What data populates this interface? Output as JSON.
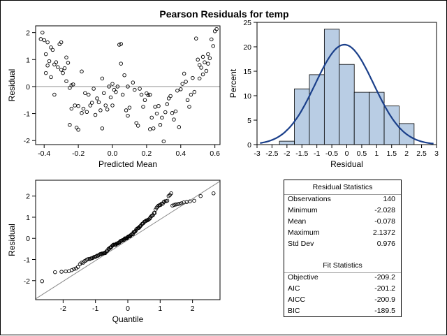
{
  "title": "Pearson Residuals for temp",
  "chart_data": [
    {
      "type": "scatter",
      "xlabel": "Predicted Mean",
      "ylabel": "Residual",
      "xlim": [
        -0.45,
        0.63
      ],
      "ylim": [
        -2.15,
        2.25
      ],
      "xticks": [
        "-0.4",
        "-0.2",
        "0.0",
        "0.2",
        "0.4",
        "0.6"
      ],
      "yticks": [
        "-2",
        "-1",
        "0",
        "1",
        "2"
      ],
      "reference_line_y": 0,
      "points": [
        [
          -0.41,
          2.0
        ],
        [
          -0.42,
          1.76
        ],
        [
          -0.4,
          1.72
        ],
        [
          -0.38,
          1.64
        ],
        [
          -0.39,
          1.2
        ],
        [
          -0.36,
          1.45
        ],
        [
          -0.35,
          1.36
        ],
        [
          -0.37,
          0.94
        ],
        [
          -0.34,
          0.82
        ],
        [
          -0.38,
          0.78
        ],
        [
          -0.39,
          0.5
        ],
        [
          -0.36,
          0.35
        ],
        [
          -0.34,
          -0.3
        ],
        [
          -0.32,
          0.72
        ],
        [
          -0.3,
          0.62
        ],
        [
          -0.31,
          1.57
        ],
        [
          -0.3,
          1.64
        ],
        [
          -0.28,
          0.68
        ],
        [
          -0.27,
          1.08
        ],
        [
          -0.27,
          0.2
        ],
        [
          -0.26,
          0.88
        ],
        [
          -0.25,
          -0.05
        ],
        [
          -0.24,
          0.05
        ],
        [
          -0.23,
          0.08
        ],
        [
          -0.24,
          -0.82
        ],
        [
          -0.22,
          -0.7
        ],
        [
          -0.25,
          -1.42
        ],
        [
          -0.21,
          -1.52
        ],
        [
          -0.2,
          -1.6
        ],
        [
          -0.2,
          -0.72
        ],
        [
          -0.18,
          -0.98
        ],
        [
          -0.17,
          -0.82
        ],
        [
          -0.16,
          -0.24
        ],
        [
          -0.18,
          0.56
        ],
        [
          -0.15,
          -0.94
        ],
        [
          -0.14,
          -0.3
        ],
        [
          -0.13,
          -0.7
        ],
        [
          -0.12,
          -0.6
        ],
        [
          -0.11,
          -0.08
        ],
        [
          -0.1,
          -1.05
        ],
        [
          -0.09,
          -0.44
        ],
        [
          -0.08,
          -0.58
        ],
        [
          -0.07,
          -0.88
        ],
        [
          -0.06,
          0.3
        ],
        [
          -0.05,
          -0.24
        ],
        [
          -0.06,
          -1.55
        ],
        [
          -0.04,
          -0.7
        ],
        [
          -0.03,
          -0.85
        ],
        [
          -0.02,
          0.0
        ],
        [
          -0.01,
          -0.4
        ],
        [
          0.0,
          -0.7
        ],
        [
          0.01,
          -0.12
        ],
        [
          0.02,
          -0.2
        ],
        [
          0.03,
          0.0
        ],
        [
          0.04,
          1.55
        ],
        [
          0.05,
          1.58
        ],
        [
          0.05,
          0.85
        ],
        [
          0.06,
          -0.3
        ],
        [
          0.07,
          0.42
        ],
        [
          0.08,
          -0.88
        ],
        [
          0.09,
          -1.08
        ],
        [
          0.1,
          -0.78
        ],
        [
          0.12,
          0.15
        ],
        [
          0.13,
          -0.12
        ],
        [
          0.14,
          -1.35
        ],
        [
          0.15,
          -1.45
        ],
        [
          0.16,
          -0.08
        ],
        [
          0.17,
          -0.3
        ],
        [
          0.18,
          -0.75
        ],
        [
          0.19,
          -0.5
        ],
        [
          0.2,
          -0.25
        ],
        [
          0.21,
          -0.32
        ],
        [
          0.22,
          -0.3
        ],
        [
          0.23,
          -1.15
        ],
        [
          0.22,
          -1.58
        ],
        [
          0.24,
          -1.55
        ],
        [
          0.25,
          -0.75
        ],
        [
          0.26,
          -1.0
        ],
        [
          0.27,
          -0.72
        ],
        [
          0.28,
          -1.42
        ],
        [
          0.29,
          -1.15
        ],
        [
          0.3,
          -2.03
        ],
        [
          0.31,
          -0.95
        ],
        [
          0.32,
          -0.65
        ],
        [
          0.33,
          -0.44
        ],
        [
          0.34,
          -0.35
        ],
        [
          0.35,
          -0.98
        ],
        [
          0.36,
          -1.22
        ],
        [
          0.37,
          -0.92
        ],
        [
          0.38,
          -0.15
        ],
        [
          0.39,
          -1.5
        ],
        [
          0.4,
          -0.1
        ],
        [
          0.41,
          0.1
        ],
        [
          0.42,
          0.48
        ],
        [
          0.43,
          0.18
        ],
        [
          0.44,
          -0.5
        ],
        [
          0.45,
          -0.75
        ],
        [
          0.46,
          -0.3
        ],
        [
          0.47,
          0.32
        ],
        [
          0.48,
          -0.2
        ],
        [
          0.49,
          1.78
        ],
        [
          0.5,
          1.0
        ],
        [
          0.51,
          0.8
        ],
        [
          0.52,
          0.7
        ],
        [
          0.53,
          0.45
        ],
        [
          0.54,
          0.9
        ],
        [
          0.55,
          0.58
        ],
        [
          0.56,
          1.2
        ],
        [
          0.57,
          1.05
        ],
        [
          0.58,
          1.75
        ],
        [
          0.59,
          1.5
        ],
        [
          0.6,
          2.05
        ],
        [
          0.61,
          2.13
        ],
        [
          0.51,
          0.3
        ],
        [
          0.53,
          1.1
        ],
        [
          0.56,
          0.85
        ],
        [
          -0.33,
          0.9
        ],
        [
          -0.29,
          0.5
        ],
        [
          0.0,
          0.1
        ],
        [
          0.09,
          0.0
        ]
      ]
    },
    {
      "type": "bar",
      "subtype": "histogram with normal curve",
      "xlabel": "Residual",
      "ylabel": "Percent",
      "xlim": [
        -3.0,
        3.0
      ],
      "ylim": [
        0,
        25
      ],
      "xticks": [
        "-3",
        "-2.5",
        "-2",
        "-1.5",
        "-1",
        "-0.5",
        "0",
        "0.5",
        "1",
        "1.5",
        "2",
        "2.5",
        "3"
      ],
      "yticks": [
        "0",
        "5",
        "10",
        "15",
        "20",
        "25"
      ],
      "bin_edges": [
        -2.25,
        -1.75,
        -1.25,
        -0.75,
        -0.25,
        0.25,
        0.75,
        1.25,
        1.75,
        2.25
      ],
      "values": [
        0.7,
        11.4,
        14.3,
        23.6,
        16.4,
        10.7,
        10.7,
        7.9,
        4.3
      ],
      "bar_color": "#b9cde4",
      "curve": {
        "mean": -0.078,
        "std": 0.976,
        "color": "#1a3f8a"
      }
    },
    {
      "type": "scatter",
      "subtype": "normal Q-Q plot",
      "xlabel": "Quantile",
      "ylabel": "Residual",
      "xlim": [
        -2.85,
        2.85
      ],
      "ylim": [
        -2.9,
        2.75
      ],
      "xticks": [
        "-2",
        "-1",
        "0",
        "1",
        "2"
      ],
      "yticks": [
        "-2",
        "-1",
        "0",
        "1",
        "2"
      ],
      "reference_line": {
        "intercept": -0.078,
        "slope": 0.976
      },
      "points": [
        [
          -2.65,
          -2.03
        ],
        [
          -2.25,
          -1.6
        ],
        [
          -2.05,
          -1.58
        ],
        [
          -1.92,
          -1.56
        ],
        [
          -1.82,
          -1.55
        ],
        [
          -1.73,
          -1.5
        ],
        [
          -1.66,
          -1.45
        ],
        [
          -1.6,
          -1.42
        ],
        [
          -1.54,
          -1.35
        ],
        [
          -1.48,
          -1.22
        ],
        [
          -1.43,
          -1.15
        ],
        [
          -1.38,
          -1.15
        ],
        [
          -1.34,
          -1.08
        ],
        [
          -1.3,
          -1.05
        ],
        [
          -1.26,
          -1.0
        ],
        [
          -1.22,
          -0.98
        ],
        [
          -1.18,
          -0.98
        ],
        [
          -1.14,
          -0.95
        ],
        [
          -1.11,
          -0.94
        ],
        [
          -1.08,
          -0.92
        ],
        [
          -1.04,
          -0.88
        ],
        [
          -1.01,
          -0.88
        ],
        [
          -0.98,
          -0.85
        ],
        [
          -0.95,
          -0.82
        ],
        [
          -0.92,
          -0.82
        ],
        [
          -0.89,
          -0.78
        ],
        [
          -0.86,
          -0.75
        ],
        [
          -0.83,
          -0.75
        ],
        [
          -0.81,
          -0.72
        ],
        [
          -0.78,
          -0.72
        ],
        [
          -0.75,
          -0.7
        ],
        [
          -0.73,
          -0.7
        ],
        [
          -0.7,
          -0.7
        ],
        [
          -0.68,
          -0.65
        ],
        [
          -0.65,
          -0.6
        ],
        [
          -0.63,
          -0.58
        ],
        [
          -0.6,
          -0.5
        ],
        [
          -0.58,
          -0.5
        ],
        [
          -0.55,
          -0.44
        ],
        [
          -0.53,
          -0.44
        ],
        [
          -0.51,
          -0.4
        ],
        [
          -0.48,
          -0.35
        ],
        [
          -0.46,
          -0.32
        ],
        [
          -0.44,
          -0.3
        ],
        [
          -0.41,
          -0.3
        ],
        [
          -0.39,
          -0.3
        ],
        [
          -0.37,
          -0.3
        ],
        [
          -0.35,
          -0.25
        ],
        [
          -0.33,
          -0.24
        ],
        [
          -0.31,
          -0.24
        ],
        [
          -0.28,
          -0.2
        ],
        [
          -0.26,
          -0.2
        ],
        [
          -0.24,
          -0.15
        ],
        [
          -0.22,
          -0.12
        ],
        [
          -0.2,
          -0.12
        ],
        [
          -0.18,
          -0.1
        ],
        [
          -0.16,
          -0.08
        ],
        [
          -0.13,
          -0.08
        ],
        [
          -0.11,
          -0.05
        ],
        [
          -0.09,
          0.0
        ],
        [
          -0.07,
          0.0
        ],
        [
          -0.05,
          0.0
        ],
        [
          -0.03,
          0.0
        ],
        [
          -0.01,
          0.05
        ],
        [
          0.01,
          0.08
        ],
        [
          0.03,
          0.1
        ],
        [
          0.05,
          0.1
        ],
        [
          0.07,
          0.1
        ],
        [
          0.09,
          0.15
        ],
        [
          0.11,
          0.18
        ],
        [
          0.13,
          0.2
        ],
        [
          0.16,
          0.2
        ],
        [
          0.18,
          0.3
        ],
        [
          0.2,
          0.3
        ],
        [
          0.22,
          0.32
        ],
        [
          0.24,
          0.35
        ],
        [
          0.26,
          0.42
        ],
        [
          0.28,
          0.45
        ],
        [
          0.31,
          0.48
        ],
        [
          0.33,
          0.5
        ],
        [
          0.35,
          0.5
        ],
        [
          0.37,
          0.56
        ],
        [
          0.39,
          0.58
        ],
        [
          0.41,
          0.62
        ],
        [
          0.44,
          0.68
        ],
        [
          0.46,
          0.7
        ],
        [
          0.48,
          0.72
        ],
        [
          0.51,
          0.78
        ],
        [
          0.53,
          0.8
        ],
        [
          0.55,
          0.82
        ],
        [
          0.58,
          0.85
        ],
        [
          0.6,
          0.85
        ],
        [
          0.63,
          0.88
        ],
        [
          0.65,
          0.9
        ],
        [
          0.68,
          0.94
        ],
        [
          0.7,
          1.0
        ],
        [
          0.73,
          1.05
        ],
        [
          0.75,
          1.08
        ],
        [
          0.78,
          1.1
        ],
        [
          0.81,
          1.2
        ],
        [
          0.83,
          1.2
        ],
        [
          0.86,
          1.36
        ],
        [
          0.89,
          1.45
        ],
        [
          0.92,
          1.5
        ],
        [
          0.95,
          1.55
        ],
        [
          0.98,
          1.57
        ],
        [
          1.01,
          1.58
        ],
        [
          1.04,
          1.64
        ],
        [
          1.08,
          1.64
        ],
        [
          1.11,
          1.72
        ],
        [
          1.14,
          1.75
        ],
        [
          1.18,
          1.76
        ],
        [
          1.22,
          1.78
        ],
        [
          1.26,
          2.0
        ],
        [
          1.3,
          2.05
        ],
        [
          1.34,
          2.13
        ],
        [
          1.38,
          1.55
        ],
        [
          1.43,
          1.58
        ],
        [
          1.48,
          1.6
        ],
        [
          1.54,
          1.62
        ],
        [
          1.6,
          1.64
        ],
        [
          1.66,
          1.66
        ],
        [
          1.73,
          1.7
        ],
        [
          1.82,
          1.72
        ],
        [
          1.92,
          1.75
        ],
        [
          2.05,
          1.78
        ],
        [
          2.25,
          2.0
        ],
        [
          2.65,
          2.13
        ]
      ]
    },
    {
      "type": "table",
      "sections": [
        {
          "title": "Residual Statistics",
          "rows": [
            [
              "Observations",
              "140"
            ],
            [
              "Minimum",
              "-2.028"
            ],
            [
              "Mean",
              "-0.078"
            ],
            [
              "Maximum",
              "2.1372"
            ],
            [
              "Std Dev",
              "0.976"
            ]
          ]
        },
        {
          "title": "Fit Statistics",
          "rows": [
            [
              "Objective",
              "-209.2"
            ],
            [
              "AIC",
              "-201.2"
            ],
            [
              "AICC",
              "-200.9"
            ],
            [
              "BIC",
              "-189.5"
            ]
          ]
        }
      ]
    }
  ]
}
